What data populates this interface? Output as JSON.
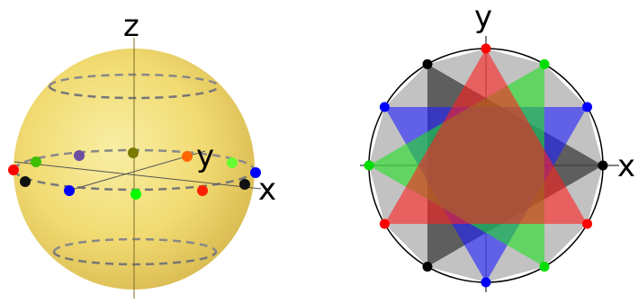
{
  "sphere_diagram": {
    "axis_labels": {
      "z": "z",
      "y": "y",
      "x": "x"
    },
    "sphere_color": "#f2dc6e",
    "latitude_ring_color": "#777777",
    "equator_points": [
      {
        "name": "red-point-left",
        "color": "#ff0000"
      },
      {
        "name": "black-point-left",
        "color": "#000000"
      },
      {
        "name": "green-point-left",
        "color": "#3fbf00"
      },
      {
        "name": "blue-point-front-left",
        "color": "#0000ff"
      },
      {
        "name": "purple-point-back",
        "color": "#6a4fa0"
      },
      {
        "name": "olive-point-back",
        "color": "#7a7a00"
      },
      {
        "name": "green-point-front",
        "color": "#00ff00"
      },
      {
        "name": "orange-point-back",
        "color": "#ff6600"
      },
      {
        "name": "light-green-point-right",
        "color": "#66ff33"
      },
      {
        "name": "red-point-front-right",
        "color": "#ff2000"
      },
      {
        "name": "blue-point-right",
        "color": "#0000ff"
      },
      {
        "name": "black-point-right",
        "color": "#000000"
      }
    ]
  },
  "projection_diagram": {
    "axis_labels": {
      "y": "y",
      "x": "x"
    },
    "triangle_colors": {
      "gray": "#9a9a9a",
      "black": "#1a1a1a",
      "blue": "#2020ff",
      "green": "#20e020",
      "red": "#ff2020"
    },
    "vertex_colors_by_angle": [
      {
        "angle_deg": 90,
        "color": "#ff0000"
      },
      {
        "angle_deg": 60,
        "color": "#00dd00"
      },
      {
        "angle_deg": 30,
        "color": "#0000ff"
      },
      {
        "angle_deg": 0,
        "color": "#000000"
      },
      {
        "angle_deg": -30,
        "color": "#ff0000"
      },
      {
        "angle_deg": -60,
        "color": "#00dd00"
      },
      {
        "angle_deg": -90,
        "color": "#0000ff"
      },
      {
        "angle_deg": -120,
        "color": "#000000"
      },
      {
        "angle_deg": -150,
        "color": "#ff0000"
      },
      {
        "angle_deg": 180,
        "color": "#00dd00"
      },
      {
        "angle_deg": 150,
        "color": "#0000ff"
      },
      {
        "angle_deg": 120,
        "color": "#000000"
      }
    ]
  }
}
